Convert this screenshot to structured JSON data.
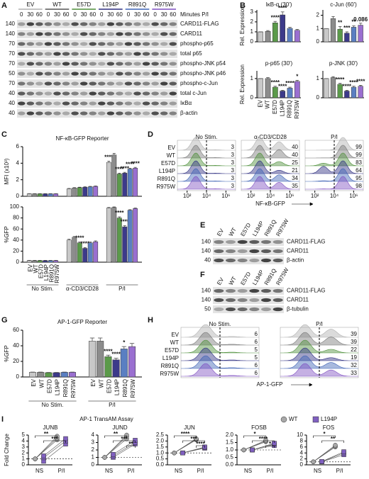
{
  "panels": [
    "A",
    "B",
    "C",
    "D",
    "E",
    "F",
    "G",
    "H",
    "I"
  ],
  "blot_a": {
    "groups": [
      {
        "name": "EV",
        "color": "#b0b0b0"
      },
      {
        "name": "WT",
        "color": "#555555"
      },
      {
        "name": "E57D",
        "color": "#4e8f3a"
      },
      {
        "name": "L194P",
        "color": "#2e2e80"
      },
      {
        "name": "R891Q",
        "color": "#3f63b5"
      },
      {
        "name": "R975W",
        "color": "#7f4fc0"
      }
    ],
    "time_label": "Minutes P/I",
    "times": [
      0,
      30,
      60
    ],
    "rows": [
      {
        "marker": 140,
        "label": "CARD11-FLAG"
      },
      {
        "marker": 140,
        "label": "CARD11"
      },
      {
        "marker": 70,
        "label": "phospho-p65"
      },
      {
        "marker": 70,
        "label": "total p65"
      },
      {
        "marker": 70,
        "label": "phospho-JNK p54"
      },
      {
        "marker": 50,
        "label": "phospho-JNK p46"
      },
      {
        "marker": 70,
        "label": "phospho-c-Jun"
      },
      {
        "marker": 40,
        "label": "total c-Jun"
      },
      {
        "marker": 40,
        "label": "IκBα"
      },
      {
        "marker": 40,
        "label": "β-actin"
      }
    ]
  },
  "blot_e": {
    "lanes": [
      {
        "name": "EV",
        "color": "#b0b0b0"
      },
      {
        "name": "WT",
        "color": "#555555"
      },
      {
        "name": "E57D",
        "color": "#4e8f3a"
      },
      {
        "name": "L194P",
        "color": "#2e2e80"
      },
      {
        "name": "R891Q",
        "color": "#3f63b5"
      },
      {
        "name": "R975W",
        "color": "#7f4fc0"
      }
    ],
    "rows": [
      {
        "marker": 140,
        "label": "CARD11-FLAG"
      },
      {
        "marker": 140,
        "label": "CARD11"
      },
      {
        "marker": 40,
        "label": "β-actin"
      }
    ]
  },
  "blot_f": {
    "lanes": [
      {
        "name": "EV",
        "color": "#b0b0b0"
      },
      {
        "name": "WT",
        "color": "#555555"
      },
      {
        "name": "E57D",
        "color": "#4e8f3a"
      },
      {
        "name": "L194P",
        "color": "#2e2e80"
      },
      {
        "name": "R891Q",
        "color": "#3f63b5"
      },
      {
        "name": "R975W",
        "color": "#7f4fc0"
      }
    ],
    "rows": [
      {
        "marker": 140,
        "label": "CARD11-FLAG"
      },
      {
        "marker": 140,
        "label": "CARD11"
      },
      {
        "marker": 50,
        "label": "β-tubulin"
      }
    ]
  },
  "chart_data": [
    {
      "type": "bar",
      "title": "IκB-α (30')",
      "ylabel": "Rel. Expression",
      "ylim": [
        0,
        3.2
      ],
      "yticks": [
        0,
        1,
        2,
        3
      ],
      "colors": [
        "#c8c8c8",
        "#8c8c8c",
        "#5b9a4a",
        "#3c3a8a",
        "#5a7fc2",
        "#9a6fd0"
      ],
      "values": [
        1,
        1.05,
        1.9,
        2.7,
        1.35,
        1.15
      ],
      "errors": [
        0,
        0.08,
        0.15,
        0.3,
        0.1,
        0.1
      ],
      "annotations": [
        null,
        null,
        "****",
        "****",
        null,
        null
      ]
    },
    {
      "type": "bar",
      "title": "c-Jun (60')",
      "ylim": [
        0,
        2.4
      ],
      "yticks": [
        0,
        1,
        2
      ],
      "colors": [
        "#c8c8c8",
        "#8c8c8c",
        "#5b9a4a",
        "#3c3a8a",
        "#5a7fc2",
        "#9a6fd0"
      ],
      "values": [
        1,
        1.75,
        0.95,
        0.65,
        1.1,
        1.25
      ],
      "errors": [
        0,
        0.15,
        0.2,
        0.1,
        0.1,
        0.15
      ],
      "annotations": [
        null,
        null,
        "**",
        "***",
        "**",
        "0.086"
      ]
    },
    {
      "type": "bar",
      "title": "p-p65 (30')",
      "ylabel": "Rel. Expression",
      "ylim": [
        0,
        1.4
      ],
      "yticks": [
        0,
        1
      ],
      "colors": [
        "#c8c8c8",
        "#8c8c8c",
        "#5b9a4a",
        "#3c3a8a",
        "#5a7fc2",
        "#9a6fd0"
      ],
      "categories": [
        "EV",
        "WT",
        "E57D",
        "L194P",
        "R891Q",
        "R975W"
      ],
      "values": [
        1,
        1,
        0.55,
        0.35,
        0.5,
        0.85
      ],
      "errors": [
        0,
        0.05,
        0.05,
        0.04,
        0.05,
        0.06
      ],
      "annotations": [
        null,
        null,
        "****",
        "****",
        "****",
        "*"
      ]
    },
    {
      "type": "bar",
      "title": "p-JNK (30')",
      "ylim": [
        0,
        1.4
      ],
      "yticks": [
        0,
        1
      ],
      "colors": [
        "#c8c8c8",
        "#8c8c8c",
        "#5b9a4a",
        "#3c3a8a",
        "#5a7fc2",
        "#9a6fd0"
      ],
      "values": [
        1,
        1.05,
        0.7,
        0.35,
        0.55,
        0.6
      ],
      "errors": [
        0,
        0.05,
        0.05,
        0.04,
        0.05,
        0.05
      ],
      "annotations": [
        null,
        null,
        "****",
        "****",
        "****",
        "****"
      ]
    },
    {
      "type": "grouped_bar",
      "title": "NF-κB-GFP Reporter",
      "ylabel": "MFI (x10³)",
      "ylim": [
        0,
        6
      ],
      "yticks": [
        0,
        2,
        4,
        6
      ],
      "series": [
        {
          "color": "#c8c8c8",
          "values": [
            0.3,
            0.9,
            4.1
          ],
          "errors": [
            0.02,
            0.05,
            0.15
          ],
          "annotations": [
            null,
            null,
            "****"
          ]
        },
        {
          "color": "#8c8c8c",
          "values": [
            0.3,
            1,
            5
          ],
          "errors": [
            0.02,
            0.05,
            0.2
          ],
          "annotations": [
            null,
            null,
            null
          ]
        },
        {
          "color": "#5b9a4a",
          "values": [
            0.3,
            1.05,
            2.7
          ],
          "errors": [
            0.02,
            0.05,
            0.1
          ],
          "annotations": [
            null,
            null,
            "****"
          ]
        },
        {
          "color": "#3c3a8a",
          "values": [
            0.3,
            1.1,
            2.8
          ],
          "errors": [
            0.02,
            0.05,
            0.1
          ],
          "annotations": [
            null,
            null,
            "****"
          ]
        },
        {
          "color": "#5a7fc2",
          "values": [
            0.3,
            1.15,
            3.3
          ],
          "errors": [
            0.02,
            0.05,
            0.1
          ],
          "annotations": [
            null,
            null,
            "****"
          ]
        },
        {
          "color": "#9a6fd0",
          "values": [
            0.3,
            1.2,
            3.4
          ],
          "errors": [
            0.02,
            0.05,
            0.1
          ],
          "annotations": [
            null,
            null,
            "****"
          ]
        }
      ]
    },
    {
      "type": "grouped_bar",
      "ylabel": "%GFP",
      "ylim": [
        0,
        100
      ],
      "yticks": [
        0,
        20,
        40,
        60,
        80,
        100
      ],
      "categories": [
        "No Stim.",
        "α-CD3/CD28",
        "P/I"
      ],
      "series": [
        {
          "name": "EV",
          "color": "#c8c8c8",
          "values": [
            3,
            40,
            98
          ],
          "errors": [
            0.3,
            1.5,
            1
          ],
          "annotations": [
            null,
            null,
            null
          ]
        },
        {
          "name": "WT",
          "color": "#8c8c8c",
          "values": [
            3,
            45,
            99
          ],
          "errors": [
            0.3,
            1.5,
            1
          ],
          "annotations": [
            null,
            null,
            null
          ]
        },
        {
          "name": "E57D",
          "color": "#5b9a4a",
          "values": [
            3,
            35,
            80
          ],
          "errors": [
            0.3,
            1.5,
            2
          ],
          "annotations": [
            null,
            "****",
            "****"
          ]
        },
        {
          "name": "L194P",
          "color": "#3c3a8a",
          "values": [
            3,
            25,
            64
          ],
          "errors": [
            0.3,
            1.5,
            2
          ],
          "annotations": [
            null,
            "****",
            "****"
          ]
        },
        {
          "name": "R891Q",
          "color": "#5a7fc2",
          "values": [
            3,
            35,
            94
          ],
          "errors": [
            0.3,
            1.5,
            1
          ],
          "annotations": [
            null,
            null,
            null
          ]
        },
        {
          "name": "R975W",
          "color": "#9a6fd0",
          "values": [
            3,
            37,
            97
          ],
          "errors": [
            0.3,
            1.5,
            1
          ],
          "annotations": [
            null,
            null,
            null
          ]
        }
      ]
    },
    {
      "type": "grouped_bar",
      "title": "AP-1-GFP Reporter",
      "ylabel": "%GFP",
      "ylim": [
        0,
        60
      ],
      "yticks": [
        0,
        20,
        40,
        60
      ],
      "categories": [
        "No Stim.",
        "P/I"
      ],
      "series": [
        {
          "name": "EV",
          "color": "#c8c8c8",
          "values": [
            6,
            46
          ],
          "errors": [
            0.3,
            4
          ],
          "annotations": [
            null,
            null
          ]
        },
        {
          "name": "WT",
          "color": "#8c8c8c",
          "values": [
            6,
            46
          ],
          "errors": [
            0.3,
            4
          ],
          "annotations": [
            null,
            null
          ]
        },
        {
          "name": "E57D",
          "color": "#5b9a4a",
          "values": [
            5.5,
            26
          ],
          "errors": [
            0.3,
            2
          ],
          "annotations": [
            null,
            "****"
          ]
        },
        {
          "name": "L194P",
          "color": "#3c3a8a",
          "values": [
            5.5,
            22
          ],
          "errors": [
            0.3,
            2
          ],
          "annotations": [
            null,
            "****"
          ]
        },
        {
          "name": "R891Q",
          "color": "#5a7fc2",
          "values": [
            6,
            36
          ],
          "errors": [
            0.3,
            3
          ],
          "annotations": [
            null,
            "*"
          ]
        },
        {
          "name": "R975W",
          "color": "#9a6fd0",
          "values": [
            6,
            39
          ],
          "errors": [
            0.3,
            4
          ],
          "annotations": [
            null,
            null
          ]
        }
      ]
    },
    {
      "type": "paired",
      "title": "AP-1 TransAM Assay",
      "ylabel": "Fold Change",
      "categories": [
        "NS",
        "P/I"
      ],
      "reference_line": 1,
      "series": [
        {
          "name": "WT",
          "color": "#a8a8a8",
          "marker": "circle"
        },
        {
          "name": "L194P",
          "color": "#8060c0",
          "marker": "square"
        }
      ],
      "panels": [
        {
          "title": "JUNB",
          "ylim": [
            0,
            5
          ],
          "yticks": [
            0,
            1,
            2,
            3,
            4,
            5
          ],
          "values": [
            [
              [
                1,
                1,
                1
              ],
              [
                4.2,
                4.5,
                4.8
              ]
            ],
            [
              [
                0.6,
                1.2,
                1.5
              ],
              [
                3.5,
                4,
                4.4
              ]
            ]
          ],
          "significance": [
            "**",
            "***"
          ]
        },
        {
          "title": "JUND",
          "ylim": [
            0,
            4
          ],
          "yticks": [
            0,
            1,
            2,
            3,
            4
          ],
          "values": [
            [
              [
                1,
                1,
                1
              ],
              [
                3.5,
                3.8,
                4
              ]
            ],
            [
              [
                1,
                1.2,
                1.4
              ],
              [
                2.8,
                3,
                3.3
              ]
            ]
          ],
          "significance": [
            "**",
            "***",
            "**"
          ]
        },
        {
          "title": "JUN",
          "ylim": [
            0,
            2.5
          ],
          "yticks": [
            {
              "value": 0,
              "label": "0.0"
            },
            0.5,
            {
              "value": 1,
              "label": "1.0"
            },
            1.5,
            {
              "value": 2,
              "label": "2.0"
            },
            2.5
          ],
          "values": [
            [
              [
                1,
                1,
                1
              ],
              [
                2.1,
                2.15,
                2.2
              ]
            ],
            [
              [
                1,
                1,
                1
              ],
              [
                1.4,
                1.45,
                1.5
              ]
            ]
          ],
          "significance": [
            "****",
            "***",
            "****"
          ]
        },
        {
          "title": "FOSB",
          "ylim": [
            0,
            2
          ],
          "yticks": [
            {
              "value": 0,
              "label": "0.0"
            },
            0.5,
            {
              "value": 1,
              "label": "1.0"
            },
            1.5,
            {
              "value": 2,
              "label": "2.0"
            }
          ],
          "values": [
            [
              [
                1,
                1,
                1
              ],
              [
                1.55,
                1.6,
                1.65
              ]
            ],
            [
              [
                1,
                1,
                1
              ],
              [
                1.3,
                1.4,
                1.45
              ]
            ]
          ],
          "significance": [
            "*",
            "****",
            "*"
          ]
        },
        {
          "title": "FOS",
          "ylim": [
            0,
            10
          ],
          "yticks": [
            0,
            2,
            4,
            6,
            8,
            10
          ],
          "values": [
            [
              [
                1,
                1,
                1
              ],
              [
                6,
                6.3,
                6.6
              ]
            ],
            [
              [
                1,
                1.05,
                1.1
              ],
              [
                3.4,
                4,
                4.4
              ]
            ]
          ],
          "significance": [
            "*",
            "**"
          ]
        }
      ]
    }
  ],
  "histo_d": {
    "conditions": [
      "No Stim.",
      "α-CD3/CD28",
      "P/I"
    ],
    "axis_label": "NF-κB-GFP",
    "log": true,
    "xlim": [
      10,
      10000000
    ],
    "gate": 10000,
    "xticks": [
      {
        "value": 100,
        "label": "10²"
      },
      {
        "value": 10000,
        "label": "10⁴"
      },
      {
        "value": 1000000,
        "label": "10⁶"
      }
    ],
    "rows": [
      {
        "name": "EV",
        "color": "#b0b0b0",
        "values": [
          3,
          40,
          99
        ]
      },
      {
        "name": "WT",
        "color": "#777777",
        "values": [
          3,
          40,
          99
        ]
      },
      {
        "name": "E57D",
        "color": "#4e8f3a",
        "values": [
          3,
          25,
          83
        ]
      },
      {
        "name": "L194P",
        "color": "#2e2e80",
        "values": [
          3,
          21,
          64
        ]
      },
      {
        "name": "R891Q",
        "color": "#3f63b5",
        "values": [
          3,
          34,
          95
        ]
      },
      {
        "name": "R975W",
        "color": "#7f4fc0",
        "values": [
          3,
          35,
          98
        ]
      }
    ]
  },
  "histo_h": {
    "conditions": [
      "No Stim.",
      "P/I"
    ],
    "axis_label": "AP-1-GFP",
    "log": true,
    "xlim": [
      10,
      10000000
    ],
    "gate": 10000,
    "rows": [
      {
        "name": "EV",
        "color": "#b0b0b0",
        "values": [
          6,
          39
        ]
      },
      {
        "name": "WT",
        "color": "#777777",
        "values": [
          6,
          39
        ]
      },
      {
        "name": "E57D",
        "color": "#4e8f3a",
        "values": [
          5,
          22
        ]
      },
      {
        "name": "L194P",
        "color": "#2e2e80",
        "values": [
          5,
          19
        ]
      },
      {
        "name": "R891Q",
        "color": "#3f63b5",
        "values": [
          6,
          32
        ]
      },
      {
        "name": "R975W",
        "color": "#7f4fc0",
        "values": [
          6,
          33
        ]
      }
    ]
  }
}
